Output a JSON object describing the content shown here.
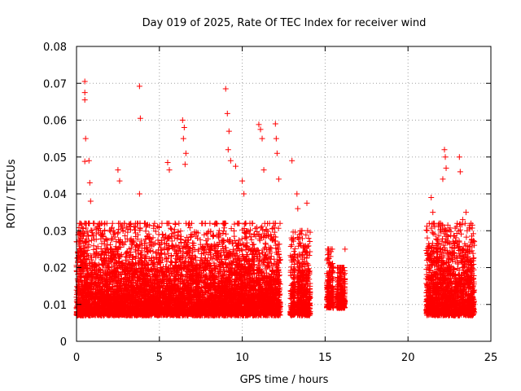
{
  "chart_data": {
    "type": "scatter",
    "title": "Day 019 of 2025, Rate Of TEC Index for receiver wind",
    "xlabel": "GPS time / hours",
    "ylabel": "ROTI / TECUs",
    "xlim": [
      0,
      25
    ],
    "ylim": [
      0,
      0.08
    ],
    "xticks": [
      0,
      5,
      10,
      15,
      20,
      25
    ],
    "yticks": [
      0,
      0.01,
      0.02,
      0.03,
      0.04,
      0.05,
      0.06,
      0.07,
      0.08
    ],
    "xtick_labels": [
      "0",
      "5",
      "10",
      "15",
      "20",
      "25"
    ],
    "ytick_labels": [
      "0",
      "0.01",
      "0.02",
      "0.03",
      "0.04",
      "0.05",
      "0.06",
      "0.07",
      "0.08"
    ],
    "grid": true,
    "marker": "+",
    "color": "#ff0000",
    "observed_segments": [
      {
        "x_range": [
          0.0,
          12.3
        ],
        "y_range": [
          0.003,
          0.032
        ]
      },
      {
        "x_range": [
          12.9,
          13.2
        ],
        "y_range": [
          0.003,
          0.03
        ]
      },
      {
        "x_range": [
          13.3,
          14.1
        ],
        "y_range": [
          0.003,
          0.03
        ]
      },
      {
        "x_range": [
          15.1,
          15.5
        ],
        "y_range": [
          0.005,
          0.025
        ]
      },
      {
        "x_range": [
          15.7,
          16.2
        ],
        "y_range": [
          0.005,
          0.02
        ]
      },
      {
        "x_range": [
          21.1,
          24.0
        ],
        "y_range": [
          0.003,
          0.032
        ]
      }
    ],
    "peaks": [
      {
        "x": 0.5,
        "y": 0.0705
      },
      {
        "x": 0.5,
        "y": 0.0675
      },
      {
        "x": 0.5,
        "y": 0.0655
      },
      {
        "x": 0.55,
        "y": 0.055
      },
      {
        "x": 0.5,
        "y": 0.0488
      },
      {
        "x": 0.75,
        "y": 0.049
      },
      {
        "x": 0.8,
        "y": 0.043
      },
      {
        "x": 0.85,
        "y": 0.038
      },
      {
        "x": 2.5,
        "y": 0.0465
      },
      {
        "x": 2.6,
        "y": 0.0435
      },
      {
        "x": 3.8,
        "y": 0.0692
      },
      {
        "x": 3.85,
        "y": 0.0605
      },
      {
        "x": 3.8,
        "y": 0.04
      },
      {
        "x": 5.5,
        "y": 0.0485
      },
      {
        "x": 5.6,
        "y": 0.0465
      },
      {
        "x": 6.4,
        "y": 0.06
      },
      {
        "x": 6.5,
        "y": 0.058
      },
      {
        "x": 6.45,
        "y": 0.055
      },
      {
        "x": 6.6,
        "y": 0.051
      },
      {
        "x": 6.55,
        "y": 0.048
      },
      {
        "x": 9.0,
        "y": 0.0685
      },
      {
        "x": 9.1,
        "y": 0.0618
      },
      {
        "x": 9.2,
        "y": 0.057
      },
      {
        "x": 9.15,
        "y": 0.052
      },
      {
        "x": 9.3,
        "y": 0.049
      },
      {
        "x": 9.6,
        "y": 0.0475
      },
      {
        "x": 10.0,
        "y": 0.0435
      },
      {
        "x": 10.1,
        "y": 0.04
      },
      {
        "x": 11.0,
        "y": 0.0588
      },
      {
        "x": 11.1,
        "y": 0.0575
      },
      {
        "x": 11.2,
        "y": 0.055
      },
      {
        "x": 11.3,
        "y": 0.0465
      },
      {
        "x": 12.0,
        "y": 0.059
      },
      {
        "x": 12.05,
        "y": 0.055
      },
      {
        "x": 12.1,
        "y": 0.051
      },
      {
        "x": 12.2,
        "y": 0.044
      },
      {
        "x": 13.0,
        "y": 0.049
      },
      {
        "x": 13.3,
        "y": 0.04
      },
      {
        "x": 13.35,
        "y": 0.036
      },
      {
        "x": 13.9,
        "y": 0.0375
      },
      {
        "x": 16.2,
        "y": 0.025
      },
      {
        "x": 21.4,
        "y": 0.039
      },
      {
        "x": 21.5,
        "y": 0.035
      },
      {
        "x": 22.2,
        "y": 0.052
      },
      {
        "x": 22.25,
        "y": 0.05
      },
      {
        "x": 22.3,
        "y": 0.047
      },
      {
        "x": 22.1,
        "y": 0.044
      },
      {
        "x": 23.1,
        "y": 0.05
      },
      {
        "x": 23.15,
        "y": 0.046
      },
      {
        "x": 23.5,
        "y": 0.035
      },
      {
        "x": 23.3,
        "y": 0.033
      },
      {
        "x": 23.8,
        "y": 0.032
      }
    ]
  }
}
